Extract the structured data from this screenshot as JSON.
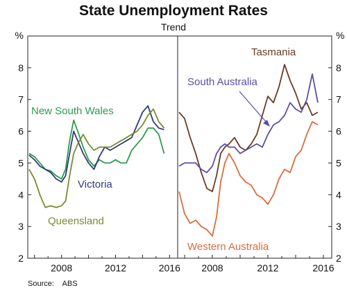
{
  "title": "State Unemployment Rates",
  "subtitle": "Trend",
  "source": "Source:    ABS",
  "chart_data": [
    {
      "type": "line",
      "panel": "left",
      "ylabel": "%",
      "ylim": [
        2,
        9
      ],
      "xlim": [
        2005.5,
        2016.6
      ],
      "yticks": [
        2,
        3,
        4,
        5,
        6,
        7,
        8
      ],
      "xticks": [
        2008,
        2012,
        2016
      ],
      "grid": false,
      "series": [
        {
          "name": "New South Wales",
          "color": "#2a9d4a",
          "x": [
            2005.6,
            2006.0,
            2006.4,
            2006.8,
            2007.2,
            2007.6,
            2008.0,
            2008.3,
            2008.6,
            2008.9,
            2009.2,
            2009.6,
            2010.0,
            2010.4,
            2010.8,
            2011.2,
            2011.6,
            2012.0,
            2012.4,
            2012.8,
            2013.2,
            2013.6,
            2014.0,
            2014.4,
            2014.8,
            2015.2,
            2015.6
          ],
          "y": [
            5.3,
            5.2,
            5.0,
            4.8,
            4.75,
            4.6,
            4.5,
            4.8,
            5.7,
            6.35,
            6.0,
            5.5,
            5.1,
            4.9,
            5.1,
            5.0,
            5.0,
            5.1,
            5.0,
            5.0,
            5.4,
            5.6,
            5.8,
            6.1,
            6.1,
            5.9,
            5.3
          ]
        },
        {
          "name": "Victoria",
          "color": "#2f3a7e",
          "x": [
            2005.6,
            2006.0,
            2006.4,
            2006.8,
            2007.2,
            2007.6,
            2008.0,
            2008.3,
            2008.6,
            2008.9,
            2009.2,
            2009.6,
            2010.0,
            2010.4,
            2010.8,
            2011.2,
            2011.6,
            2012.0,
            2012.4,
            2012.8,
            2013.2,
            2013.6,
            2014.0,
            2014.4,
            2014.8,
            2015.2,
            2015.6
          ],
          "y": [
            5.25,
            5.1,
            4.9,
            4.8,
            4.7,
            4.5,
            4.4,
            4.6,
            5.3,
            6.0,
            5.7,
            5.3,
            5.0,
            4.8,
            5.2,
            5.5,
            5.4,
            5.5,
            5.6,
            5.7,
            5.8,
            6.2,
            6.6,
            6.8,
            6.3,
            6.1,
            6.05
          ]
        },
        {
          "name": "Queensland",
          "color": "#7a8a2e",
          "x": [
            2005.6,
            2006.0,
            2006.4,
            2006.8,
            2007.2,
            2007.6,
            2008.0,
            2008.3,
            2008.6,
            2008.9,
            2009.2,
            2009.6,
            2010.0,
            2010.4,
            2010.8,
            2011.2,
            2011.6,
            2012.0,
            2012.4,
            2012.8,
            2013.2,
            2013.6,
            2014.0,
            2014.4,
            2014.8,
            2015.2,
            2015.6
          ],
          "y": [
            4.8,
            4.5,
            4.0,
            3.6,
            3.65,
            3.6,
            3.65,
            3.8,
            4.6,
            5.3,
            5.6,
            5.9,
            5.6,
            5.4,
            5.5,
            5.5,
            5.5,
            5.6,
            5.7,
            5.8,
            5.9,
            6.0,
            6.2,
            6.5,
            6.7,
            6.3,
            6.1
          ]
        }
      ]
    },
    {
      "type": "line",
      "panel": "right",
      "ylabel": "%",
      "ylim": [
        2,
        9
      ],
      "xlim": [
        2005.5,
        2016.6
      ],
      "yticks": [
        2,
        3,
        4,
        5,
        6,
        7,
        8
      ],
      "xticks": [
        2008,
        2012,
        2016
      ],
      "grid": false,
      "series": [
        {
          "name": "Tasmania",
          "color": "#6b3a22",
          "x": [
            2005.6,
            2006.0,
            2006.4,
            2006.8,
            2007.2,
            2007.6,
            2008.0,
            2008.3,
            2008.6,
            2008.9,
            2009.2,
            2009.6,
            2010.0,
            2010.4,
            2010.8,
            2011.2,
            2011.6,
            2012.0,
            2012.4,
            2012.8,
            2013.2,
            2013.6,
            2014.0,
            2014.4,
            2014.8,
            2015.2,
            2015.6
          ],
          "y": [
            6.6,
            6.4,
            5.8,
            5.3,
            4.7,
            4.2,
            4.1,
            4.6,
            5.3,
            5.5,
            5.6,
            5.8,
            5.5,
            5.4,
            5.6,
            5.9,
            6.5,
            7.1,
            6.9,
            7.4,
            8.1,
            7.6,
            7.2,
            6.7,
            6.9,
            6.5,
            6.6
          ]
        },
        {
          "name": "South Australia",
          "color": "#5a4ea6",
          "x": [
            2005.6,
            2006.0,
            2006.4,
            2006.8,
            2007.2,
            2007.6,
            2008.0,
            2008.3,
            2008.6,
            2008.9,
            2009.2,
            2009.6,
            2010.0,
            2010.4,
            2010.8,
            2011.2,
            2011.6,
            2012.0,
            2012.4,
            2012.8,
            2013.2,
            2013.6,
            2014.0,
            2014.4,
            2014.8,
            2015.2,
            2015.6
          ],
          "y": [
            4.9,
            5.0,
            5.0,
            5.0,
            4.8,
            4.7,
            4.9,
            5.3,
            5.5,
            5.6,
            5.5,
            5.5,
            5.3,
            5.4,
            5.5,
            5.6,
            5.5,
            5.9,
            6.2,
            6.3,
            6.5,
            6.9,
            6.7,
            6.6,
            7.0,
            7.8,
            6.9
          ]
        },
        {
          "name": "Western Australia",
          "color": "#e06a3a",
          "x": [
            2005.6,
            2006.0,
            2006.4,
            2006.8,
            2007.2,
            2007.6,
            2008.0,
            2008.3,
            2008.6,
            2008.9,
            2009.2,
            2009.6,
            2010.0,
            2010.4,
            2010.8,
            2011.2,
            2011.6,
            2012.0,
            2012.4,
            2012.8,
            2013.2,
            2013.6,
            2014.0,
            2014.4,
            2014.8,
            2015.2,
            2015.6
          ],
          "y": [
            4.1,
            3.4,
            3.1,
            3.2,
            3.0,
            2.9,
            2.7,
            3.3,
            4.4,
            5.0,
            5.3,
            5.0,
            4.6,
            4.4,
            4.3,
            4.0,
            3.9,
            3.7,
            4.0,
            4.5,
            4.8,
            4.7,
            5.2,
            5.4,
            5.9,
            6.3,
            6.2
          ]
        }
      ]
    }
  ]
}
